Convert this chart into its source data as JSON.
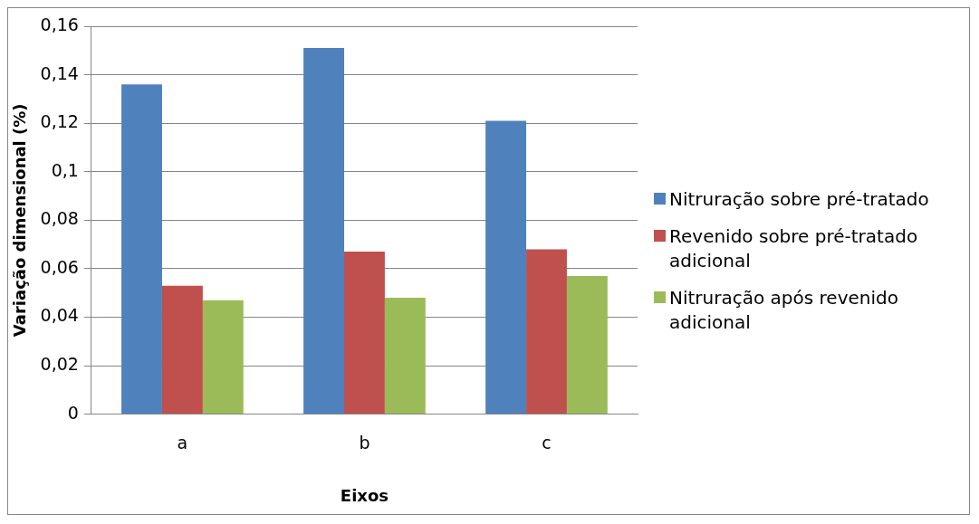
{
  "chart_data": {
    "type": "bar",
    "xlabel": "Eixos",
    "ylabel": "Variação dimensional (%)",
    "categories": [
      "a",
      "b",
      "c"
    ],
    "series": [
      {
        "name": "Nitruração sobre pré-tratado",
        "color": "#4f81bd",
        "values": [
          0.136,
          0.151,
          0.121
        ]
      },
      {
        "name": "Revenido sobre pré-tratado adicional",
        "color": "#c0504d",
        "values": [
          0.053,
          0.067,
          0.068
        ]
      },
      {
        "name": "Nitruração após revenido adicional",
        "color": "#9bbb59",
        "values": [
          0.047,
          0.048,
          0.057
        ]
      }
    ],
    "ylim": [
      0,
      0.16
    ],
    "yticks": [
      0,
      {
        "value": 0.02,
        "label": "0,02"
      },
      {
        "value": 0.04,
        "label": "0,04"
      },
      {
        "value": 0.06,
        "label": "0,06"
      },
      {
        "value": 0.08,
        "label": "0,08"
      },
      {
        "value": 0.1,
        "label": "0,1"
      },
      {
        "value": 0.12,
        "label": "0,12"
      },
      {
        "value": 0.14,
        "label": "0,14"
      },
      {
        "value": 0.16,
        "label": "0,16"
      }
    ],
    "grid": "y",
    "legend": "right"
  }
}
